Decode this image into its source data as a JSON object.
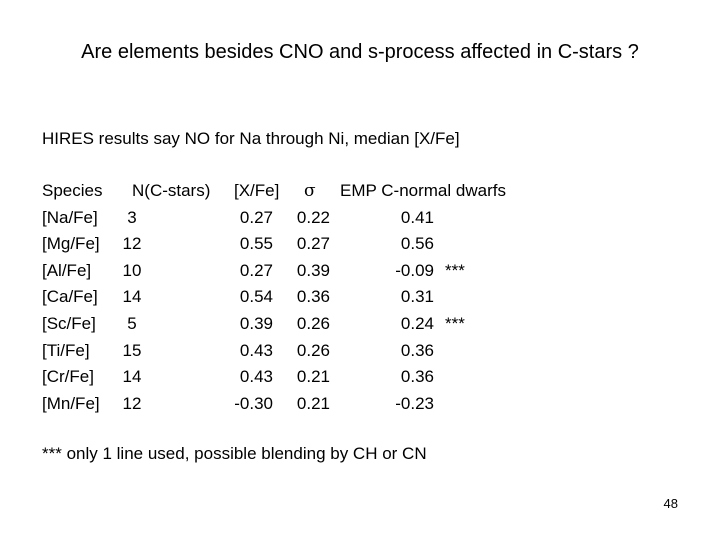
{
  "title": "Are elements besides CNO and s-process affected in C-stars ?",
  "subtitle": "HIRES results say NO for Na through Ni, median [X/Fe]",
  "table": {
    "headers": {
      "species": "Species",
      "n": "N(C-stars)",
      "xfe": "[X/Fe]",
      "sigma": "σ",
      "emp": "EMP C-normal dwarfs"
    },
    "rows": [
      {
        "species": "[Na/Fe]",
        "n": "3",
        "xfe": "0.27",
        "sigma": "0.22",
        "emp": "0.41",
        "flag": ""
      },
      {
        "species": "[Mg/Fe]",
        "n": "12",
        "xfe": "0.55",
        "sigma": "0.27",
        "emp": "0.56",
        "flag": ""
      },
      {
        "species": "[Al/Fe]",
        "n": "10",
        "xfe": "0.27",
        "sigma": "0.39",
        "emp": "-0.09",
        "flag": "***"
      },
      {
        "species": "[Ca/Fe]",
        "n": "14",
        "xfe": "0.54",
        "sigma": "0.36",
        "emp": "0.31",
        "flag": ""
      },
      {
        "species": "[Sc/Fe]",
        "n": "5",
        "xfe": "0.39",
        "sigma": "0.26",
        "emp": "0.24",
        "flag": "***"
      },
      {
        "species": "[Ti/Fe]",
        "n": "15",
        "xfe": "0.43",
        "sigma": "0.26",
        "emp": "0.36",
        "flag": ""
      },
      {
        "species": "[Cr/Fe]",
        "n": "14",
        "xfe": "0.43",
        "sigma": "0.21",
        "emp": "0.36",
        "flag": ""
      },
      {
        "species": "[Mn/Fe]",
        "n": "12",
        "xfe": "-0.30",
        "sigma": "0.21",
        "emp": "-0.23",
        "flag": ""
      }
    ]
  },
  "footnote": "***  only 1 line used, possible blending by CH or CN",
  "page_number": "48"
}
